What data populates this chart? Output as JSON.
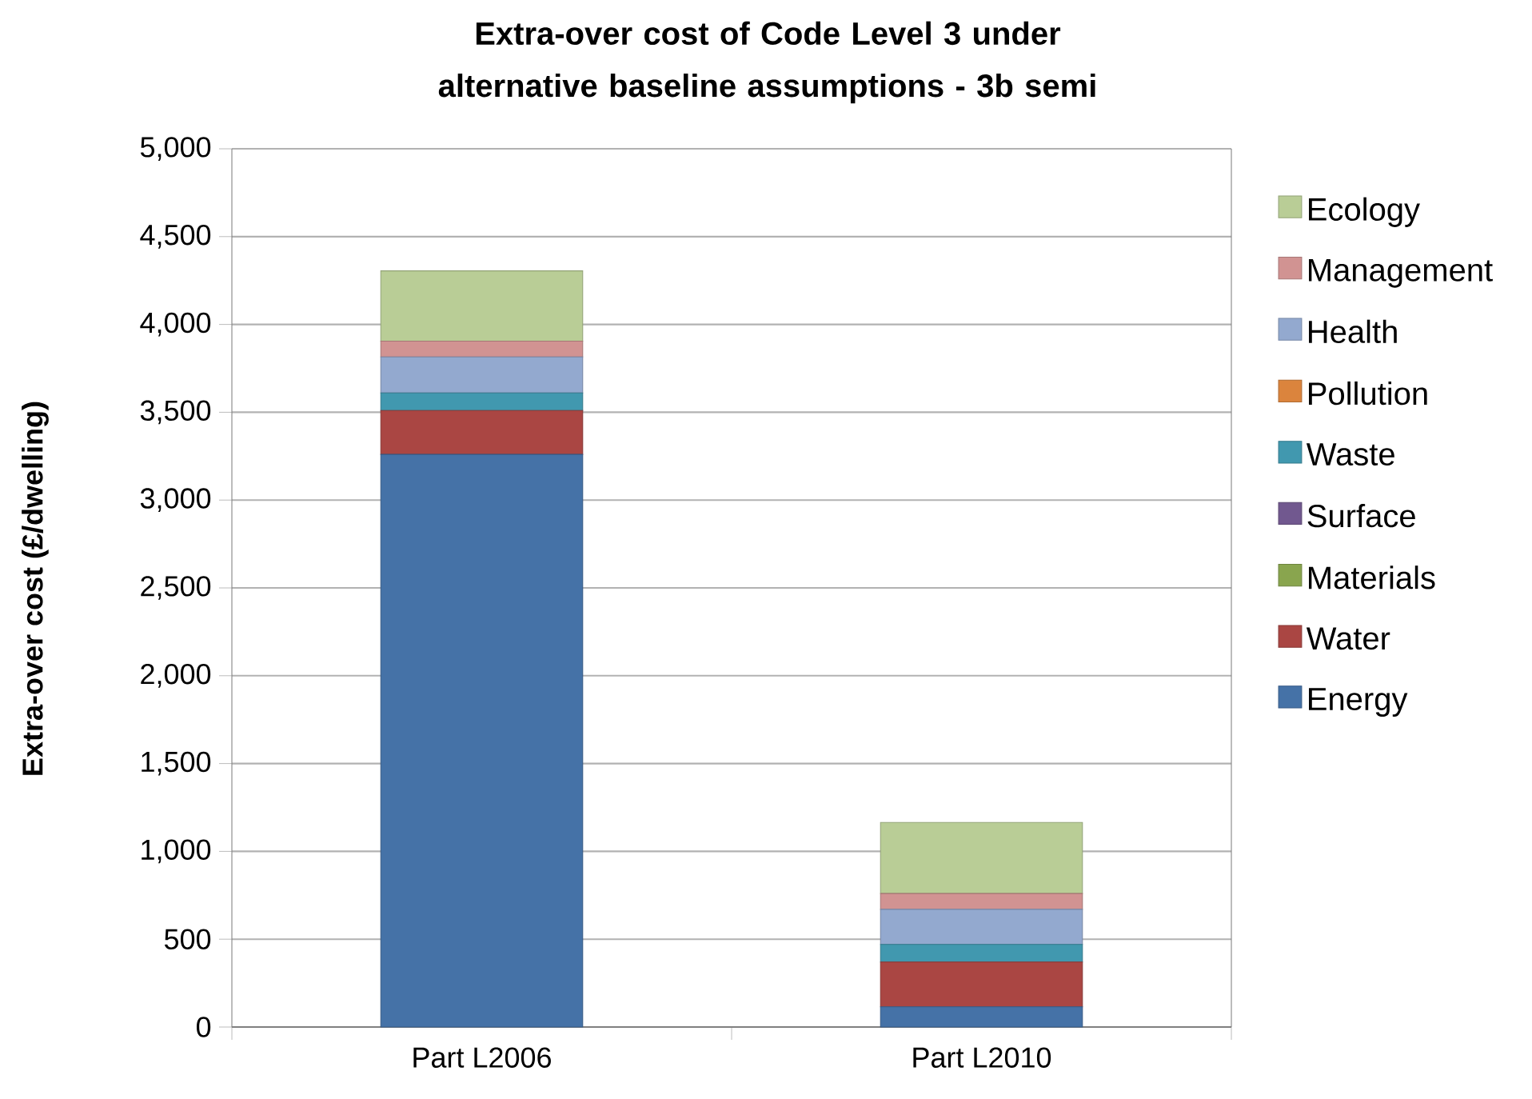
{
  "chart_data": {
    "type": "bar",
    "stacked": true,
    "title": "Extra-over cost of Code Level 3 under alternative baseline assumptions - 3b semi",
    "ylabel": "Extra-over cost (£/dwelling)",
    "categories": [
      "Part L2006",
      "Part L2010"
    ],
    "series": [
      {
        "name": "Energy",
        "color": "#4572a7",
        "values": [
          3260,
          115
        ]
      },
      {
        "name": "Water",
        "color": "#aa4643",
        "values": [
          250,
          255
        ]
      },
      {
        "name": "Materials",
        "color": "#89a54e",
        "values": [
          0,
          0
        ]
      },
      {
        "name": "Surface",
        "color": "#71588f",
        "values": [
          0,
          0
        ]
      },
      {
        "name": "Waste",
        "color": "#4198af",
        "values": [
          100,
          100
        ]
      },
      {
        "name": "Pollution",
        "color": "#db843d",
        "values": [
          0,
          0
        ]
      },
      {
        "name": "Health",
        "color": "#93a9cf",
        "values": [
          205,
          200
        ]
      },
      {
        "name": "Management",
        "color": "#d19392",
        "values": [
          90,
          90
        ]
      },
      {
        "name": "Ecology",
        "color": "#b9cd96",
        "values": [
          400,
          405
        ]
      }
    ],
    "ylim": [
      0,
      5000
    ],
    "yticks": [
      {
        "value": 0,
        "label": "0"
      },
      {
        "value": 500,
        "label": "500"
      },
      {
        "value": 1000,
        "label": "1,000"
      },
      {
        "value": 1500,
        "label": "1,500"
      },
      {
        "value": 2000,
        "label": "2,000"
      },
      {
        "value": 2500,
        "label": "2,500"
      },
      {
        "value": 3000,
        "label": "3,000"
      },
      {
        "value": 3500,
        "label": "3,500"
      },
      {
        "value": 4000,
        "label": "4,000"
      },
      {
        "value": 4500,
        "label": "4,500"
      },
      {
        "value": 5000,
        "label": "5,000"
      }
    ],
    "grid": "y",
    "legend": "right"
  }
}
